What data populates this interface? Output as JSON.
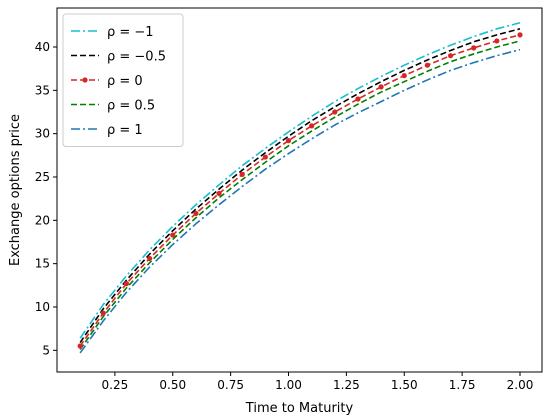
{
  "chart_data": {
    "type": "line",
    "title": "",
    "xlabel": "Time to Maturity",
    "ylabel": "Exchange options price",
    "xlim": [
      0.0,
      2.095
    ],
    "ylim": [
      2.5,
      44.5
    ],
    "xticks": [
      0.25,
      0.5,
      0.75,
      1.0,
      1.25,
      1.5,
      1.75,
      2.0
    ],
    "xtick_labels": [
      "0.25",
      "0.50",
      "0.75",
      "1.00",
      "1.25",
      "1.50",
      "1.75",
      "2.00"
    ],
    "yticks": [
      5,
      10,
      15,
      20,
      25,
      30,
      35,
      40
    ],
    "ytick_labels": [
      "5",
      "10",
      "15",
      "20",
      "25",
      "30",
      "35",
      "40"
    ],
    "grid": false,
    "legend_position": "top-left",
    "x": [
      0.1,
      0.2,
      0.3,
      0.4,
      0.5,
      0.6,
      0.7,
      0.8,
      0.9,
      1.0,
      1.1,
      1.2,
      1.3,
      1.4,
      1.5,
      1.6,
      1.7,
      1.8,
      1.9,
      2.0
    ],
    "series": [
      {
        "name": "ρ = −1",
        "color": "#17becf",
        "style": "dashdot",
        "marker": "none",
        "values": [
          6.4,
          10.3,
          13.6,
          16.6,
          19.3,
          21.8,
          24.1,
          26.3,
          28.3,
          30.2,
          32.0,
          33.7,
          35.2,
          36.6,
          37.9,
          39.1,
          40.2,
          41.2,
          42.1,
          42.8
        ]
      },
      {
        "name": "ρ = −0.5",
        "color": "#000000",
        "style": "dashed",
        "marker": "none",
        "values": [
          5.9,
          9.8,
          13.1,
          16.1,
          18.8,
          21.3,
          23.6,
          25.8,
          27.8,
          29.7,
          31.5,
          33.1,
          34.6,
          36.0,
          37.3,
          38.5,
          39.6,
          40.6,
          41.4,
          42.1
        ]
      },
      {
        "name": "ρ = 0",
        "color": "#d62728",
        "style": "dashed",
        "marker": "circle",
        "values": [
          5.5,
          9.3,
          12.7,
          15.6,
          18.3,
          20.8,
          23.1,
          25.3,
          27.3,
          29.2,
          30.9,
          32.5,
          34.0,
          35.4,
          36.7,
          37.9,
          39.0,
          39.9,
          40.7,
          41.4
        ]
      },
      {
        "name": "ρ = 0.5",
        "color": "#008000",
        "style": "dashed",
        "marker": "none",
        "values": [
          5.1,
          8.9,
          12.2,
          15.1,
          17.8,
          20.3,
          22.6,
          24.7,
          26.7,
          28.6,
          30.3,
          31.9,
          33.4,
          34.8,
          36.0,
          37.2,
          38.3,
          39.2,
          40.0,
          40.7
        ]
      },
      {
        "name": "ρ = 1",
        "color": "#1f77b4",
        "style": "dashdot",
        "marker": "none",
        "values": [
          4.7,
          8.4,
          11.7,
          14.6,
          17.2,
          19.6,
          21.8,
          23.9,
          25.9,
          27.7,
          29.4,
          31.0,
          32.4,
          33.7,
          35.0,
          36.2,
          37.3,
          38.2,
          39.0,
          39.7
        ]
      }
    ]
  }
}
